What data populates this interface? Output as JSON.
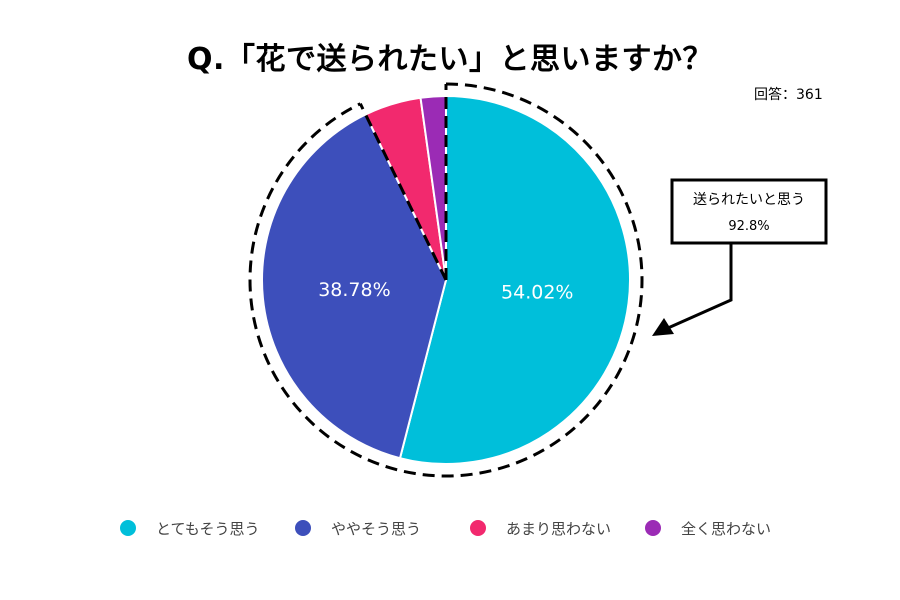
{
  "title": "Q.「花で送られたい」と思いますか？",
  "respondents": "回答：361",
  "callout": {
    "line1": "送られたいと思う",
    "line2": "92.8%"
  },
  "chart_data": {
    "type": "pie",
    "title": "Q.「花で送られたい」と思いますか？",
    "categories": [
      "とてもそう思う",
      "ややそう思う",
      "あまり思わない",
      "全く思わない"
    ],
    "values": [
      54.02,
      38.78,
      4.99,
      2.21
    ],
    "data_labels": [
      "54.02%",
      "38.78%",
      "",
      ""
    ],
    "colors": [
      "#00bfda",
      "#3d4fbb",
      "#f2296e",
      "#9b2bb5"
    ],
    "legend_position": "bottom"
  }
}
